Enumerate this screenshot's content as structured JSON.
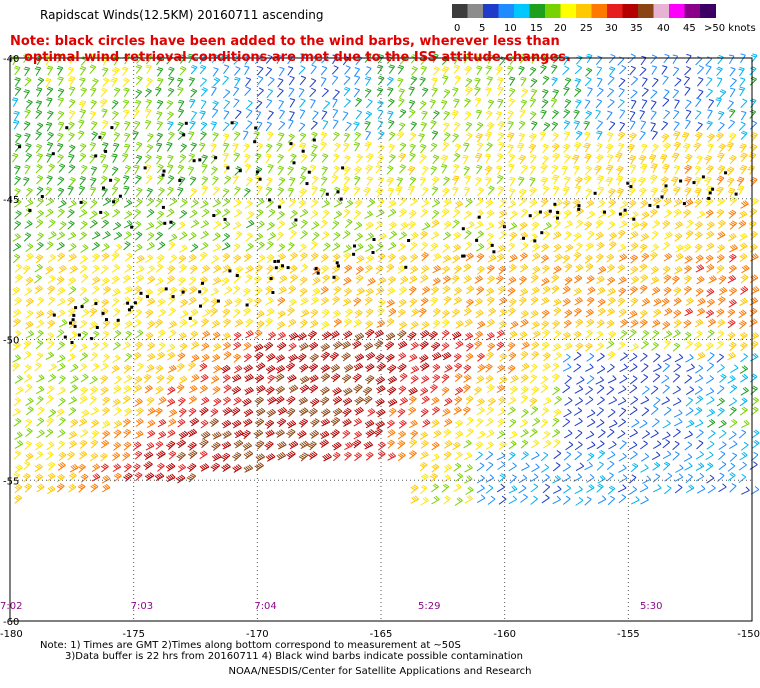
{
  "header": {
    "title": "Rapidscat Winds(12.5KM) 20160711 ascending",
    "note_line1": "Note: black circles have been added to the wind barbs, wherever less than",
    "note_line2": "optimal wind retrieval conditions are met due to the ISS attitude changes."
  },
  "colorbar": {
    "labels": [
      "0",
      "5",
      "10",
      "15",
      "20",
      "25",
      "30",
      "35",
      "40",
      "45",
      ">50 knots"
    ],
    "colors": [
      "#3c3c3c",
      "#8c8c8c",
      "#1e3cc8",
      "#1e8cff",
      "#00c8ff",
      "#1ea01e",
      "#78d200",
      "#ffff00",
      "#ffc800",
      "#ff7800",
      "#e61e1e",
      "#b40000",
      "#8b4513",
      "#e6b4d2",
      "#ff00ff",
      "#8b008b",
      "#3c0064"
    ]
  },
  "map": {
    "lon_labels": [
      "-180",
      "-175",
      "-170",
      "-165",
      "-160",
      "-155",
      "-150"
    ],
    "lat_labels": [
      "-40",
      "-45",
      "-50",
      "-55",
      "-60"
    ],
    "time_labels": [
      "7:02",
      "7:03",
      "7:04",
      "5:29",
      "5:30"
    ]
  },
  "footnotes": {
    "line1": "Note: 1) Times are GMT 2)Times along bottom correspond to measurement at ~50S",
    "line2": "3)Data buffer is 22 hrs from 20160711 4) Black wind barbs indicate possible contamination"
  },
  "credit": "NOAA/NESDIS/Center for Satellite Applications and Research"
}
